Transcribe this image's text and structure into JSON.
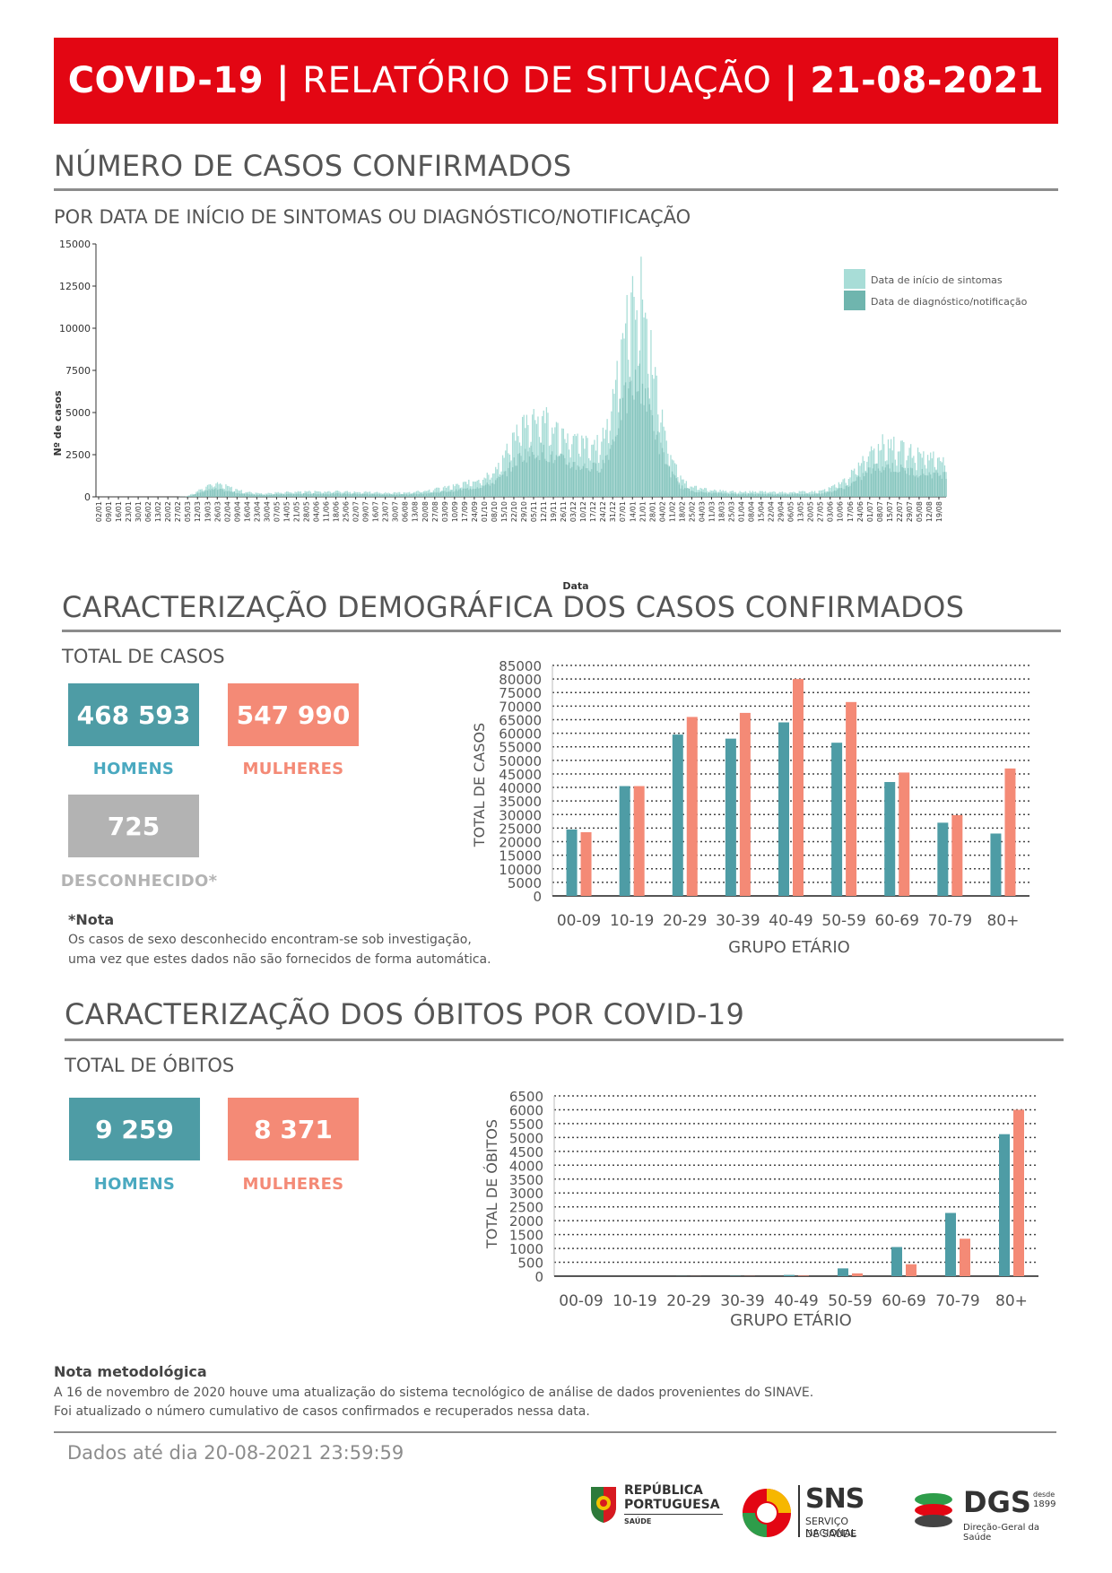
{
  "header": {
    "prefix": "COVID-19",
    "middle": "RELATÓRIO DE SITUAÇÃO",
    "date": "21-08-2021",
    "separator": "|"
  },
  "colors": {
    "banner": "#e30613",
    "men": "#4e9ca5",
    "women": "#f48a76",
    "unknown": "#b3b3b3",
    "symptoms": "#a8ddd7",
    "diagnosis": "#6fb5ae"
  },
  "cases_section": {
    "title": "NÚMERO DE CASOS CONFIRMADOS",
    "subtitle": "POR DATA DE INÍCIO DE SINTOMAS OU DIAGNÓSTICO/NOTIFICAÇÃO"
  },
  "demographic": {
    "title": "CARACTERIZAÇÃO DEMOGRÁFICA DOS CASOS CONFIRMADOS",
    "total_label": "TOTAL DE CASOS",
    "men_value": "468 593",
    "men_label": "HOMENS",
    "women_value": "547 990",
    "women_label": "MULHERES",
    "unknown_value": "725",
    "unknown_label": "DESCONHECIDO*",
    "note_title": "*Nota",
    "note_line1": "Os casos de sexo desconhecido encontram-se sob investigação,",
    "note_line2": "uma vez que estes dados não são fornecidos de forma automática."
  },
  "deaths": {
    "title": "CARACTERIZAÇÃO DOS ÓBITOS POR COVID-19",
    "total_label": "TOTAL DE ÓBITOS",
    "men_value": "9 259",
    "men_label": "HOMENS",
    "women_value": "8 371",
    "women_label": "MULHERES"
  },
  "methodology": {
    "title": "Nota metodológica",
    "line1": "A 16 de novembro de 2020 houve uma atualização do sistema tecnológico de análise de dados provenientes do SINAVE.",
    "line2": "Foi atualizado o número cumulativo de casos confirmados e recuperados nessa data."
  },
  "footer": {
    "data_until": "Dados até dia 20-08-2021 23:59:59",
    "logo1_line1": "REPÚBLICA",
    "logo1_line2": "PORTUGUESA",
    "logo1_line3": "SAÚDE",
    "logo2_title": "SNS",
    "logo2_line1": "SERVIÇO NACIONAL",
    "logo2_line2": "DE SAÚDE",
    "logo3_title": "DGS",
    "logo3_since": "desde",
    "logo3_year": "1899",
    "logo3_line": "Direção-Geral da Saúde"
  },
  "chart_data": [
    {
      "type": "bar",
      "ylabel": "Nº de casos",
      "xlabel": "Data",
      "ylim": [
        0,
        15000
      ],
      "yticks": [
        0,
        2500,
        5000,
        7500,
        10000,
        12500,
        15000
      ],
      "legend_placement": "top-right",
      "series": [
        {
          "name": "Data de início de sintomas"
        },
        {
          "name": "Data de diagnóstico/notificação"
        }
      ],
      "x_tick_labels": [
        "02/01",
        "09/01",
        "16/01",
        "23/01",
        "30/01",
        "06/02",
        "13/02",
        "20/02",
        "27/02",
        "05/03",
        "12/03",
        "19/03",
        "26/03",
        "02/04",
        "09/04",
        "16/04",
        "23/04",
        "30/04",
        "07/05",
        "14/05",
        "21/05",
        "28/05",
        "04/06",
        "11/06",
        "18/06",
        "25/06",
        "02/07",
        "09/07",
        "16/07",
        "23/07",
        "30/07",
        "06/08",
        "13/08",
        "20/08",
        "27/08",
        "03/09",
        "10/09",
        "17/09",
        "24/09",
        "01/10",
        "08/10",
        "15/10",
        "22/10",
        "29/10",
        "05/11",
        "12/11",
        "19/11",
        "26/11",
        "03/12",
        "10/12",
        "17/12",
        "24/12",
        "31/12",
        "07/01",
        "14/01",
        "21/01",
        "28/01",
        "04/02",
        "11/02",
        "18/02",
        "25/02",
        "04/03",
        "11/03",
        "18/03",
        "25/03",
        "01/04",
        "08/04",
        "15/04",
        "22/04",
        "29/04",
        "06/05",
        "13/05",
        "20/05",
        "27/05",
        "03/06",
        "10/06",
        "17/06",
        "24/06",
        "01/07",
        "08/07",
        "15/07",
        "22/07",
        "29/07",
        "05/08",
        "12/08",
        "19/08"
      ],
      "weekly_approx_values": [
        0,
        0,
        0,
        0,
        0,
        0,
        0,
        0,
        0,
        20,
        300,
        700,
        800,
        650,
        450,
        300,
        250,
        200,
        250,
        280,
        300,
        320,
        330,
        320,
        340,
        330,
        320,
        300,
        280,
        260,
        240,
        260,
        300,
        380,
        450,
        550,
        650,
        800,
        950,
        1150,
        1500,
        2200,
        3500,
        4500,
        4800,
        5000,
        4200,
        3900,
        3500,
        3300,
        3100,
        3300,
        5500,
        9500,
        11500,
        12500,
        9000,
        5000,
        2600,
        1100,
        700,
        500,
        420,
        380,
        340,
        300,
        310,
        320,
        300,
        280,
        290,
        300,
        310,
        340,
        500,
        800,
        1200,
        1900,
        2800,
        3200,
        3300,
        3000,
        2800,
        2600,
        2500,
        2400
      ],
      "grid": false
    },
    {
      "type": "bar",
      "xlabel": "GRUPO ETÁRIO",
      "ylabel": "TOTAL DE CASOS",
      "ylim": [
        0,
        85000
      ],
      "yticks": [
        0,
        5000,
        10000,
        15000,
        20000,
        25000,
        30000,
        35000,
        40000,
        45000,
        50000,
        55000,
        60000,
        65000,
        70000,
        75000,
        80000,
        85000
      ],
      "categories": [
        "00-09",
        "10-19",
        "20-29",
        "30-39",
        "40-49",
        "50-59",
        "60-69",
        "70-79",
        "80+"
      ],
      "series": [
        {
          "values": [
            24500,
            40500,
            59500,
            58000,
            64000,
            56500,
            42000,
            27000,
            23000
          ]
        },
        {
          "values": [
            23500,
            40500,
            66000,
            67500,
            80000,
            71500,
            45500,
            29800,
            47000
          ]
        }
      ],
      "grid": true
    },
    {
      "type": "bar",
      "xlabel": "GRUPO ETÁRIO",
      "ylabel": "TOTAL DE ÓBITOS",
      "ylim": [
        0,
        6500
      ],
      "yticks": [
        0,
        500,
        1000,
        1500,
        2000,
        2500,
        3000,
        3500,
        4000,
        4500,
        5000,
        5500,
        6000,
        6500
      ],
      "categories": [
        "00-09",
        "10-19",
        "20-29",
        "30-39",
        "40-49",
        "50-59",
        "60-69",
        "70-79",
        "80+"
      ],
      "series": [
        {
          "values": [
            0,
            0,
            5,
            12,
            45,
            280,
            1050,
            2280,
            5120
          ]
        },
        {
          "values": [
            0,
            0,
            3,
            6,
            20,
            100,
            430,
            1350,
            6000
          ]
        }
      ],
      "grid": true
    }
  ]
}
